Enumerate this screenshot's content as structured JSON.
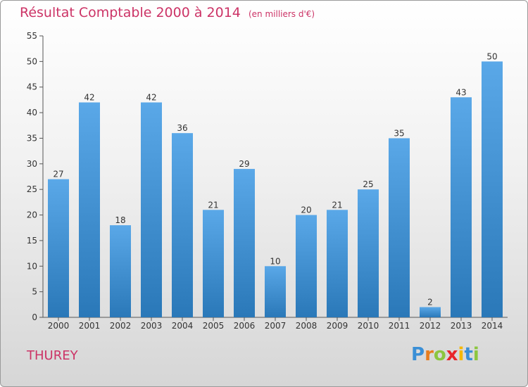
{
  "title": "Résultat Comptable 2000 à 2014",
  "subtitle": "(en milliers d'€)",
  "commune": "THUREY",
  "logo": {
    "letters": [
      "P",
      "r",
      "o",
      "x",
      "i",
      "t",
      "i"
    ],
    "colors": [
      "#3a8fd6",
      "#e87d1e",
      "#8cc63f",
      "#e8262a",
      "#f5b800",
      "#3a8fd6",
      "#8cc63f"
    ]
  },
  "colors": {
    "bar_top": "#5aa8e8",
    "bar_bottom": "#2a78b8",
    "title": "#cc3366",
    "grid": "#cccccc"
  },
  "chart_data": {
    "type": "bar",
    "title": "Résultat Comptable 2000 à 2014",
    "subtitle": "(en milliers d'€)",
    "categories": [
      "2000",
      "2001",
      "2002",
      "2003",
      "2004",
      "2005",
      "2006",
      "2007",
      "2008",
      "2009",
      "2010",
      "2011",
      "2012",
      "2013",
      "2014"
    ],
    "values": [
      27,
      42,
      18,
      42,
      36,
      21,
      29,
      10,
      20,
      21,
      25,
      35,
      2,
      43,
      50
    ],
    "ylim": [
      0,
      55
    ],
    "yticks": [
      0,
      5,
      10,
      15,
      20,
      25,
      30,
      35,
      40,
      45,
      50,
      55
    ],
    "grid": false,
    "data_labels": true
  }
}
